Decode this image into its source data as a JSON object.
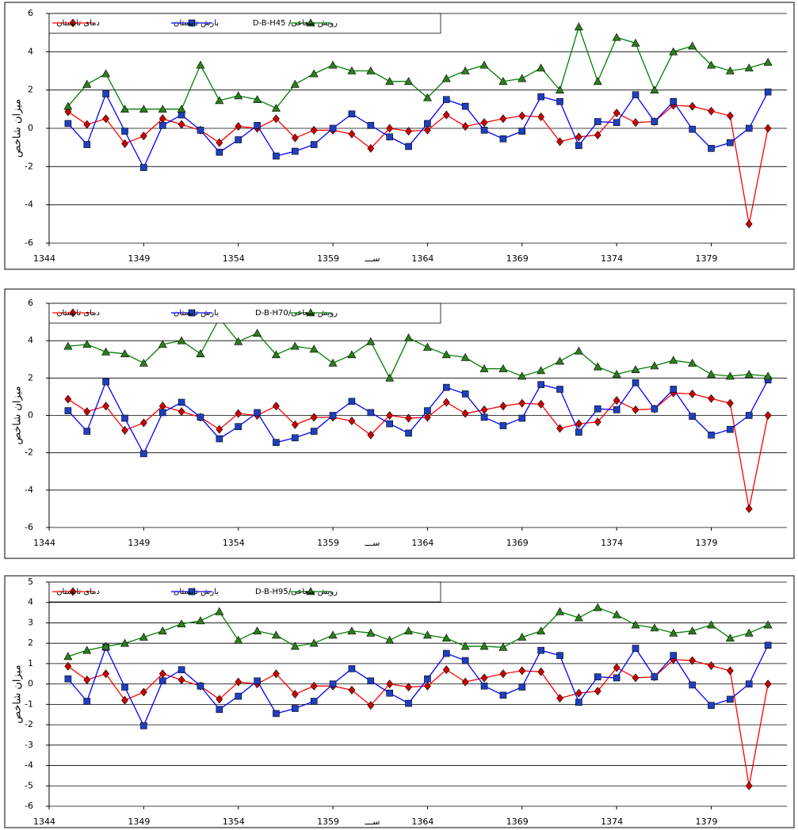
{
  "chart_data": [
    {
      "type": "line",
      "ylabel": "میزان شاخص",
      "xlabel": "ســـ",
      "grid": true,
      "legend": "top-left",
      "x": [
        1345,
        1346,
        1347,
        1348,
        1349,
        1350,
        1351,
        1352,
        1353,
        1354,
        1355,
        1356,
        1357,
        1358,
        1359,
        1360,
        1361,
        1362,
        1363,
        1364,
        1365,
        1366,
        1367,
        1368,
        1369,
        1370,
        1371,
        1372,
        1373,
        1374,
        1375,
        1376,
        1377,
        1378,
        1379,
        1380,
        1381,
        1382
      ],
      "xlim": [
        1344,
        1383
      ],
      "xticks": [
        1344,
        1349,
        1354,
        1359,
        1364,
        1369,
        1374,
        1379
      ],
      "ylim": [
        -6,
        6
      ],
      "yticks": [
        -6,
        -4,
        -2,
        0,
        2,
        4,
        6
      ],
      "series": [
        {
          "name": "دمای تابستان",
          "color": "#ff0000",
          "marker": "diamond",
          "values": [
            0.87,
            0.2,
            0.5,
            -0.8,
            -0.4,
            0.5,
            0.2,
            -0.1,
            -0.75,
            0.1,
            0,
            0.5,
            -0.5,
            -0.1,
            -0.1,
            -0.3,
            -1.05,
            0,
            -0.15,
            -0.1,
            0.7,
            0.1,
            0.3,
            0.5,
            0.65,
            0.6,
            -0.7,
            -0.45,
            -0.35,
            0.8,
            0.3,
            0.35,
            1.2,
            1.15,
            0.9,
            0.65,
            -5,
            0
          ]
        },
        {
          "name": "بارش تابستان",
          "color": "#0000ff",
          "marker": "square",
          "values": [
            0.25,
            -0.85,
            1.8,
            -0.15,
            -2.05,
            0.15,
            0.7,
            -0.1,
            -1.25,
            -0.6,
            0.15,
            -1.45,
            -1.2,
            -0.85,
            0,
            0.75,
            0.15,
            -0.45,
            -0.95,
            0.25,
            1.5,
            1.15,
            -0.1,
            -0.55,
            -0.15,
            1.65,
            1.4,
            -0.9,
            0.35,
            0.3,
            1.75,
            0.35,
            1.4,
            -0.05,
            -1.05,
            -0.75,
            0,
            1.9
          ]
        },
        {
          "name": "رویش شعاعی/ D-B-H45",
          "color": "#008000",
          "marker": "triangle",
          "values": [
            1.15,
            2.3,
            2.85,
            1,
            1,
            1,
            1,
            3.3,
            1.45,
            1.7,
            1.5,
            1.05,
            2.3,
            2.85,
            3.3,
            3,
            3,
            2.45,
            2.45,
            1.6,
            2.6,
            3,
            3.3,
            2.45,
            2.6,
            3.15,
            2,
            5.3,
            2.45,
            4.75,
            4.45,
            2,
            4,
            4.3,
            3.3,
            3,
            3.15,
            3.45
          ]
        }
      ]
    },
    {
      "type": "line",
      "ylabel": "میزان شاخص",
      "xlabel": "ســـ",
      "grid": true,
      "legend": "top-left",
      "x": [
        1345,
        1346,
        1347,
        1348,
        1349,
        1350,
        1351,
        1352,
        1353,
        1354,
        1355,
        1356,
        1357,
        1358,
        1359,
        1360,
        1361,
        1362,
        1363,
        1364,
        1365,
        1366,
        1367,
        1368,
        1369,
        1370,
        1371,
        1372,
        1373,
        1374,
        1375,
        1376,
        1377,
        1378,
        1379,
        1380,
        1381,
        1382
      ],
      "xlim": [
        1344,
        1383
      ],
      "xticks": [
        1344,
        1349,
        1354,
        1359,
        1364,
        1369,
        1374,
        1379
      ],
      "ylim": [
        -6,
        6
      ],
      "yticks": [
        -6,
        -4,
        -2,
        0,
        2,
        4,
        6
      ],
      "series": [
        {
          "name": "دمای تابستان",
          "color": "#ff0000",
          "marker": "diamond",
          "values": [
            0.87,
            0.2,
            0.5,
            -0.8,
            -0.4,
            0.5,
            0.2,
            -0.1,
            -0.75,
            0.1,
            0,
            0.5,
            -0.5,
            -0.1,
            -0.1,
            -0.3,
            -1.05,
            0,
            -0.15,
            -0.1,
            0.7,
            0.1,
            0.3,
            0.5,
            0.65,
            0.6,
            -0.7,
            -0.45,
            -0.35,
            0.8,
            0.3,
            0.35,
            1.2,
            1.15,
            0.9,
            0.65,
            -5,
            0
          ]
        },
        {
          "name": "بارش تابستان",
          "color": "#0000ff",
          "marker": "square",
          "values": [
            0.25,
            -0.85,
            1.8,
            -0.15,
            -2.05,
            0.15,
            0.7,
            -0.1,
            -1.25,
            -0.6,
            0.15,
            -1.45,
            -1.2,
            -0.85,
            0,
            0.75,
            0.15,
            -0.45,
            -0.95,
            0.25,
            1.5,
            1.15,
            -0.1,
            -0.55,
            -0.15,
            1.65,
            1.4,
            -0.9,
            0.35,
            0.3,
            1.75,
            0.35,
            1.4,
            -0.05,
            -1.05,
            -0.75,
            0,
            1.9
          ]
        },
        {
          "name": "رویش شعاعی/D-B-H70",
          "color": "#008000",
          "marker": "triangle",
          "values": [
            3.7,
            3.8,
            3.4,
            3.3,
            2.8,
            3.8,
            4,
            3.3,
            5.2,
            3.95,
            4.4,
            3.25,
            3.7,
            3.55,
            2.8,
            3.25,
            3.95,
            2,
            4.15,
            3.65,
            3.25,
            3.1,
            2.5,
            2.5,
            2.1,
            2.4,
            2.9,
            3.45,
            2.6,
            2.2,
            2.45,
            2.65,
            2.95,
            2.8,
            2.2,
            2.1,
            2.2,
            2.1
          ]
        }
      ]
    },
    {
      "type": "line",
      "ylabel": "میزان شاخص",
      "xlabel": "ســـ",
      "grid": true,
      "legend": "top-left",
      "x": [
        1345,
        1346,
        1347,
        1348,
        1349,
        1350,
        1351,
        1352,
        1353,
        1354,
        1355,
        1356,
        1357,
        1358,
        1359,
        1360,
        1361,
        1362,
        1363,
        1364,
        1365,
        1366,
        1367,
        1368,
        1369,
        1370,
        1371,
        1372,
        1373,
        1374,
        1375,
        1376,
        1377,
        1378,
        1379,
        1380,
        1381,
        1382
      ],
      "xlim": [
        1344,
        1383
      ],
      "xticks": [
        1344,
        1349,
        1354,
        1359,
        1364,
        1369,
        1374,
        1379
      ],
      "ylim": [
        -6,
        5
      ],
      "yticks": [
        -6,
        -5,
        -4,
        -3,
        -2,
        -1,
        0,
        1,
        2,
        3,
        4,
        5
      ],
      "series": [
        {
          "name": "دمای تابستان",
          "color": "#ff0000",
          "marker": "diamond",
          "values": [
            0.87,
            0.2,
            0.5,
            -0.8,
            -0.4,
            0.5,
            0.2,
            -0.1,
            -0.75,
            0.1,
            0,
            0.5,
            -0.5,
            -0.1,
            -0.1,
            -0.3,
            -1.05,
            0,
            -0.15,
            -0.1,
            0.7,
            0.1,
            0.3,
            0.5,
            0.65,
            0.6,
            -0.7,
            -0.45,
            -0.35,
            0.8,
            0.3,
            0.35,
            1.2,
            1.15,
            0.9,
            0.65,
            -5,
            0
          ]
        },
        {
          "name": "بارش تابستان",
          "color": "#0000ff",
          "marker": "square",
          "values": [
            0.25,
            -0.85,
            1.8,
            -0.15,
            -2.05,
            0.15,
            0.7,
            -0.1,
            -1.25,
            -0.6,
            0.15,
            -1.45,
            -1.2,
            -0.85,
            0,
            0.75,
            0.15,
            -0.45,
            -0.95,
            0.25,
            1.5,
            1.15,
            -0.1,
            -0.55,
            -0.15,
            1.65,
            1.4,
            -0.9,
            0.35,
            0.3,
            1.75,
            0.35,
            1.4,
            -0.05,
            -1.05,
            -0.75,
            0,
            1.9
          ]
        },
        {
          "name": "رویش شعاعی/D-B-H95",
          "color": "#008000",
          "marker": "triangle",
          "values": [
            1.35,
            1.65,
            1.85,
            2,
            2.3,
            2.6,
            2.95,
            3.1,
            3.55,
            2.15,
            2.6,
            2.4,
            1.85,
            2,
            2.4,
            2.6,
            2.5,
            2.15,
            2.6,
            2.4,
            2.25,
            1.85,
            1.85,
            1.8,
            2.3,
            2.6,
            3.55,
            3.25,
            3.75,
            3.4,
            2.9,
            2.75,
            2.5,
            2.6,
            2.9,
            2.25,
            2.5,
            2.9
          ]
        }
      ]
    }
  ]
}
